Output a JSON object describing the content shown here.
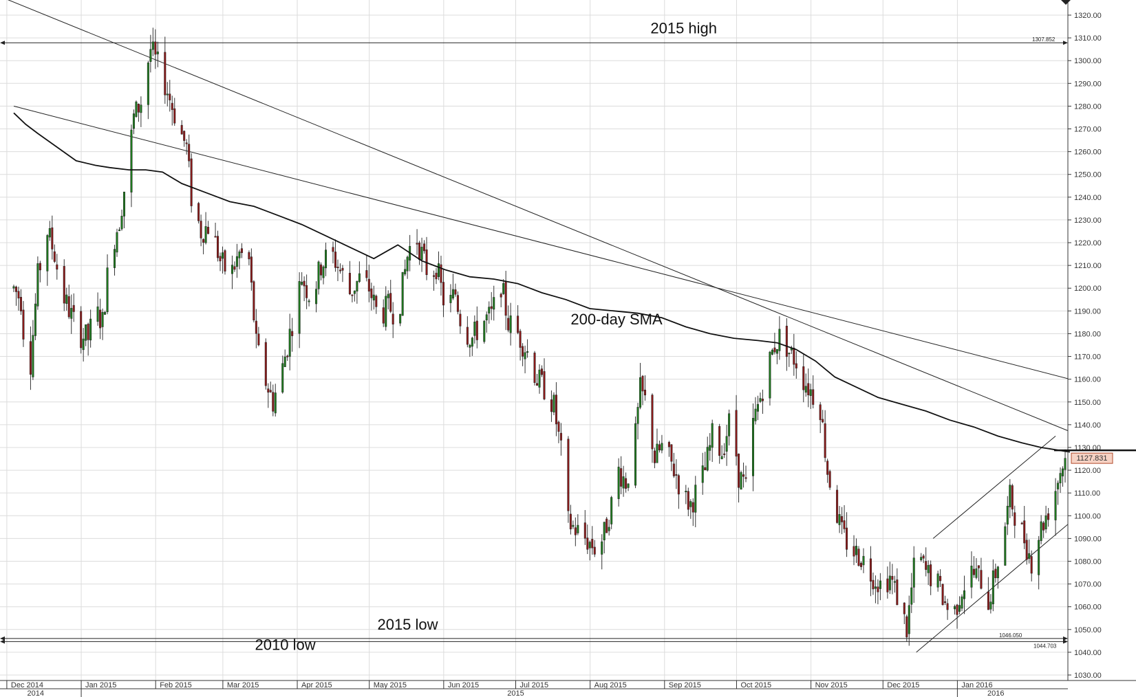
{
  "chart_data": {
    "type": "candlestick",
    "title": "",
    "xlabel": "",
    "ylabel": "",
    "ylim": [
      1030,
      1320
    ],
    "y_ticks": [
      "1030.00",
      "1040.00",
      "1050.00",
      "1060.00",
      "1070.00",
      "1080.00",
      "1090.00",
      "1100.00",
      "1110.00",
      "1120.00",
      "1130.00",
      "1140.00",
      "1150.00",
      "1160.00",
      "1170.00",
      "1180.00",
      "1190.00",
      "1200.00",
      "1210.00",
      "1220.00",
      "1230.00",
      "1240.00",
      "1250.00",
      "1260.00",
      "1270.00",
      "1280.00",
      "1290.00",
      "1300.00",
      "1310.00",
      "1320.00"
    ],
    "month_labels": [
      {
        "label": "Dec 2014",
        "day": 8
      },
      {
        "label": "Jan 2015",
        "day": 39
      },
      {
        "label": "Feb 2015",
        "day": 70
      },
      {
        "label": "Mar 2015",
        "day": 98
      },
      {
        "label": "Apr 2015",
        "day": 129
      },
      {
        "label": "May 2015",
        "day": 159
      },
      {
        "label": "Jun 2015",
        "day": 190
      },
      {
        "label": "Jul 2015",
        "day": 220
      },
      {
        "label": "Aug 2015",
        "day": 251
      },
      {
        "label": "Sep 2015",
        "day": 282
      },
      {
        "label": "Oct 2015",
        "day": 312
      },
      {
        "label": "Nov 2015",
        "day": 343
      },
      {
        "label": "Dec 2015",
        "day": 373
      },
      {
        "label": "Jan 2016",
        "day": 404
      }
    ],
    "year_labels": [
      {
        "label": "2014",
        "day": 20
      },
      {
        "label": "2015",
        "day": 220
      },
      {
        "label": "2016",
        "day": 420
      }
    ],
    "year_dividers": [
      39,
      404
    ],
    "day_range": [
      0,
      440
    ],
    "candle_anchors": [
      [
        0,
        1200
      ],
      [
        3,
        1195
      ],
      [
        6,
        1155
      ],
      [
        10,
        1205
      ],
      [
        14,
        1225
      ],
      [
        17,
        1215
      ],
      [
        20,
        1198
      ],
      [
        24,
        1188
      ],
      [
        27,
        1180
      ],
      [
        31,
        1178
      ],
      [
        34,
        1190
      ],
      [
        37,
        1185
      ],
      [
        40,
        1215
      ],
      [
        44,
        1230
      ],
      [
        47,
        1250
      ],
      [
        50,
        1275
      ],
      [
        53,
        1282
      ],
      [
        55,
        1295
      ],
      [
        57,
        1305
      ],
      [
        60,
        1298
      ],
      [
        63,
        1290
      ],
      [
        66,
        1280
      ],
      [
        69,
        1270
      ],
      [
        72,
        1262
      ],
      [
        74,
        1240
      ],
      [
        78,
        1225
      ],
      [
        82,
        1228
      ],
      [
        86,
        1212
      ],
      [
        90,
        1205
      ],
      [
        94,
        1215
      ],
      [
        98,
        1212
      ],
      [
        101,
        1175
      ],
      [
        104,
        1162
      ],
      [
        108,
        1150
      ],
      [
        112,
        1165
      ],
      [
        116,
        1185
      ],
      [
        120,
        1205
      ],
      [
        124,
        1195
      ],
      [
        128,
        1210
      ],
      [
        132,
        1216
      ],
      [
        136,
        1208
      ],
      [
        140,
        1198
      ],
      [
        144,
        1204
      ],
      [
        148,
        1200
      ],
      [
        152,
        1187
      ],
      [
        156,
        1192
      ],
      [
        160,
        1188
      ],
      [
        164,
        1214
      ],
      [
        167,
        1225
      ],
      [
        170,
        1215
      ],
      [
        173,
        1205
      ],
      [
        176,
        1210
      ],
      [
        180,
        1190
      ],
      [
        184,
        1198
      ],
      [
        187,
        1182
      ],
      [
        191,
        1178
      ],
      [
        195,
        1185
      ],
      [
        199,
        1188
      ],
      [
        203,
        1202
      ],
      [
        206,
        1185
      ],
      [
        210,
        1180
      ],
      [
        214,
        1172
      ],
      [
        218,
        1160
      ],
      [
        222,
        1155
      ],
      [
        225,
        1148
      ],
      [
        228,
        1128
      ],
      [
        230,
        1098
      ],
      [
        233,
        1095
      ],
      [
        236,
        1092
      ],
      [
        240,
        1088
      ],
      [
        243,
        1085
      ],
      [
        246,
        1092
      ],
      [
        249,
        1105
      ],
      [
        252,
        1120
      ],
      [
        255,
        1115
      ],
      [
        258,
        1125
      ],
      [
        261,
        1155
      ],
      [
        264,
        1148
      ],
      [
        267,
        1125
      ],
      [
        270,
        1130
      ],
      [
        273,
        1125
      ],
      [
        276,
        1118
      ],
      [
        279,
        1108
      ],
      [
        282,
        1105
      ],
      [
        285,
        1112
      ],
      [
        288,
        1120
      ],
      [
        291,
        1135
      ],
      [
        295,
        1128
      ],
      [
        299,
        1145
      ],
      [
        302,
        1118
      ],
      [
        305,
        1112
      ],
      [
        308,
        1140
      ],
      [
        311,
        1152
      ],
      [
        314,
        1165
      ],
      [
        317,
        1175
      ],
      [
        320,
        1180
      ],
      [
        323,
        1172
      ],
      [
        326,
        1168
      ],
      [
        329,
        1160
      ],
      [
        332,
        1155
      ],
      [
        336,
        1148
      ],
      [
        339,
        1120
      ],
      [
        342,
        1105
      ],
      [
        345,
        1092
      ],
      [
        349,
        1085
      ],
      [
        353,
        1082
      ],
      [
        357,
        1075
      ],
      [
        361,
        1070
      ],
      [
        365,
        1073
      ],
      [
        369,
        1062
      ],
      [
        372,
        1050
      ],
      [
        376,
        1085
      ],
      [
        380,
        1075
      ],
      [
        384,
        1072
      ],
      [
        388,
        1062
      ],
      [
        391,
        1055
      ],
      [
        395,
        1068
      ],
      [
        399,
        1075
      ],
      [
        403,
        1072
      ],
      [
        406,
        1062
      ],
      [
        409,
        1075
      ],
      [
        412,
        1090
      ],
      [
        415,
        1108
      ],
      [
        418,
        1098
      ],
      [
        421,
        1090
      ],
      [
        424,
        1080
      ],
      [
        427,
        1092
      ],
      [
        430,
        1100
      ],
      [
        433,
        1108
      ],
      [
        436,
        1120
      ],
      [
        438,
        1125
      ],
      [
        440,
        1127
      ]
    ],
    "sma_200": [
      [
        0,
        1277
      ],
      [
        5,
        1272
      ],
      [
        10,
        1268
      ],
      [
        18,
        1262
      ],
      [
        26,
        1256
      ],
      [
        34,
        1254
      ],
      [
        40,
        1253
      ],
      [
        48,
        1252
      ],
      [
        55,
        1252
      ],
      [
        62,
        1251
      ],
      [
        70,
        1246
      ],
      [
        80,
        1242
      ],
      [
        90,
        1238
      ],
      [
        100,
        1236
      ],
      [
        110,
        1232
      ],
      [
        120,
        1228
      ],
      [
        130,
        1223
      ],
      [
        140,
        1218
      ],
      [
        150,
        1213
      ],
      [
        160,
        1219
      ],
      [
        170,
        1212
      ],
      [
        180,
        1208
      ],
      [
        190,
        1205
      ],
      [
        200,
        1204
      ],
      [
        210,
        1202
      ],
      [
        220,
        1198
      ],
      [
        230,
        1195
      ],
      [
        240,
        1191
      ],
      [
        250,
        1190
      ],
      [
        260,
        1189
      ],
      [
        270,
        1187
      ],
      [
        280,
        1183
      ],
      [
        290,
        1180
      ],
      [
        300,
        1178
      ],
      [
        310,
        1177
      ],
      [
        318,
        1176
      ],
      [
        326,
        1173
      ],
      [
        334,
        1168
      ],
      [
        342,
        1161
      ],
      [
        350,
        1157
      ],
      [
        360,
        1152
      ],
      [
        370,
        1149
      ],
      [
        380,
        1146
      ],
      [
        390,
        1142
      ],
      [
        400,
        1139
      ],
      [
        410,
        1135
      ],
      [
        420,
        1132
      ],
      [
        428,
        1130
      ],
      [
        434,
        1129
      ],
      [
        440,
        1128
      ]
    ],
    "trendlines": [
      {
        "from": [
          -10,
          1330
        ],
        "to": [
          440,
          1137
        ]
      },
      {
        "from": [
          0,
          1280
        ],
        "to": [
          440,
          1160
        ]
      },
      {
        "from": [
          383,
          1090
        ],
        "to": [
          434,
          1135
        ]
      },
      {
        "from": [
          376,
          1040
        ],
        "to": [
          440,
          1097
        ]
      }
    ],
    "levels": [
      {
        "name": "2015 high",
        "value": 1307.852,
        "label": "1307.852"
      },
      {
        "name": "2015 low",
        "value": 1046.05,
        "label": "1046.050"
      },
      {
        "name": "2010 low",
        "value": 1044.703,
        "label": "1044.703"
      }
    ],
    "annotations": [
      {
        "text": "2015 high",
        "day": 290,
        "value": 1312
      },
      {
        "text": "200-day SMA",
        "day": 262,
        "value": 1184
      },
      {
        "text": "2015 low",
        "day": 175,
        "value": 1050
      },
      {
        "text": "2010 low",
        "day": 124,
        "value": 1041
      }
    ],
    "last_price": {
      "value": 1127.831,
      "label": "1127.831"
    },
    "colors": {
      "up": "#1f7a1f",
      "down": "#8b1a1a",
      "grid": "#dcdcdc",
      "line": "#222222",
      "price_box": "#f6d2c4"
    }
  }
}
